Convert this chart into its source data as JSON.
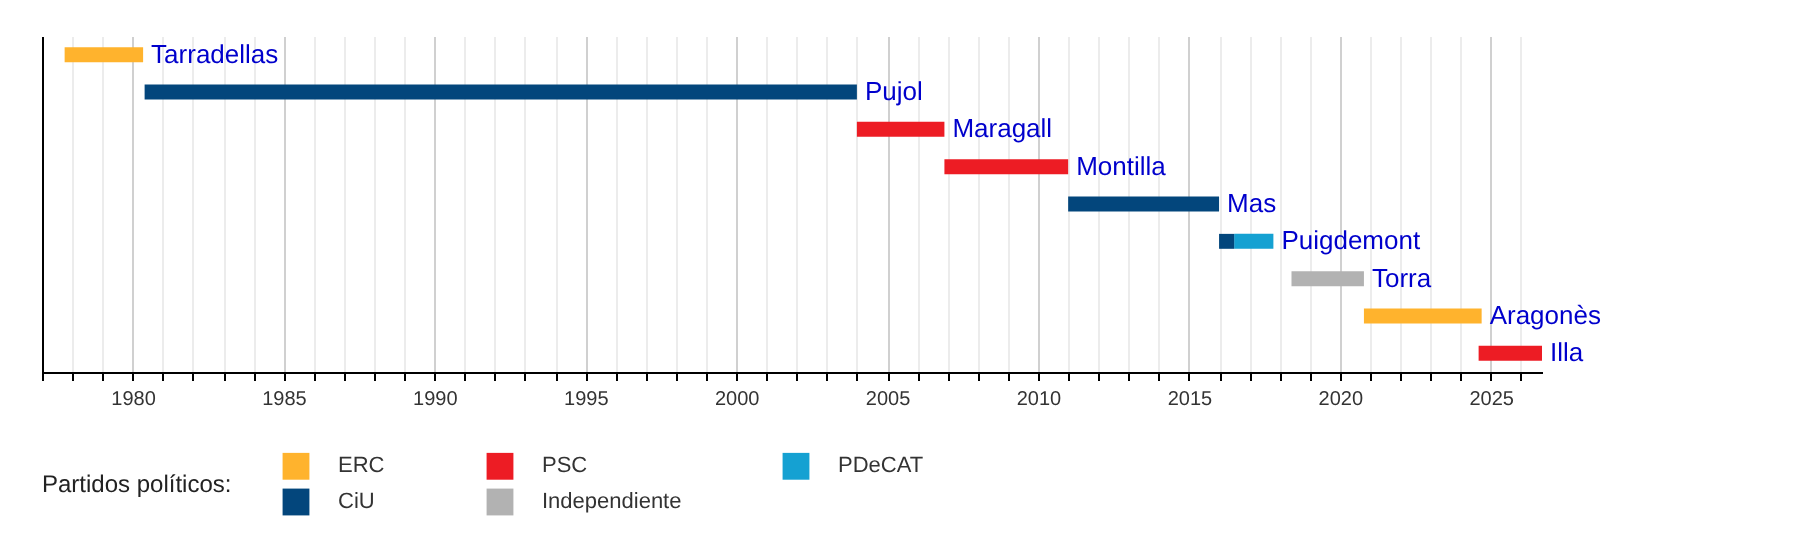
{
  "chart_data": {
    "type": "bar",
    "orientation": "horizontal",
    "categories": [
      "Tarradellas",
      "Pujol",
      "Maragall",
      "Montilla",
      "Mas",
      "Puigdemont",
      "Torra",
      "Aragonès",
      "Illa"
    ],
    "series": [
      {
        "name": "ERC",
        "color": "#ffb32d",
        "base": [
          1977.75,
          null,
          null,
          null,
          null,
          null,
          null,
          2020.8,
          null
        ],
        "values": [
          2.6,
          null,
          null,
          null,
          null,
          null,
          null,
          3.9,
          null
        ]
      },
      {
        "name": "PSC",
        "color": "#ed1c24",
        "base": [
          null,
          null,
          2004.0,
          2006.9,
          null,
          null,
          null,
          null,
          2024.6
        ],
        "values": [
          null,
          null,
          2.9,
          4.1,
          null,
          null,
          null,
          null,
          2.1
        ]
      },
      {
        "name": "PDeCAT",
        "color": "#15a1d2",
        "base": [
          null,
          null,
          null,
          null,
          null,
          2016.5,
          null,
          null,
          null
        ],
        "values": [
          null,
          null,
          null,
          null,
          null,
          1.3,
          null,
          null,
          null
        ]
      },
      {
        "name": "CiU",
        "color": "#03467c",
        "base": [
          null,
          1980.4,
          null,
          null,
          2011.0,
          2016.0,
          null,
          null,
          null
        ],
        "values": [
          null,
          23.6,
          null,
          null,
          5.0,
          0.5,
          null,
          null,
          null
        ]
      },
      {
        "name": "Independiente",
        "color": "#b2b2b2",
        "base": [
          null,
          null,
          null,
          null,
          null,
          null,
          2018.4,
          null,
          null
        ],
        "values": [
          null,
          null,
          null,
          null,
          null,
          null,
          2.4,
          null,
          null
        ]
      }
    ],
    "legend_title": "Partidos políticos:",
    "legend": "bottom",
    "grid": "x",
    "tick_labels": "x",
    "xlim": [
      1977,
      2026.7
    ],
    "xticks": [
      {
        "value": 1977,
        "label": null
      },
      {
        "value": 1978,
        "label": null
      },
      {
        "value": 1979,
        "label": null
      },
      1980,
      {
        "value": 1981,
        "label": null
      },
      {
        "value": 1982,
        "label": null
      },
      {
        "value": 1983,
        "label": null
      },
      {
        "value": 1984,
        "label": null
      },
      1985,
      {
        "value": 1986,
        "label": null
      },
      {
        "value": 1987,
        "label": null
      },
      {
        "value": 1988,
        "label": null
      },
      {
        "value": 1989,
        "label": null
      },
      1990,
      {
        "value": 1991,
        "label": null
      },
      {
        "value": 1992,
        "label": null
      },
      {
        "value": 1993,
        "label": null
      },
      {
        "value": 1994,
        "label": null
      },
      1995,
      {
        "value": 1996,
        "label": null
      },
      {
        "value": 1997,
        "label": null
      },
      {
        "value": 1998,
        "label": null
      },
      {
        "value": 1999,
        "label": null
      },
      2000,
      {
        "value": 2001,
        "label": null
      },
      {
        "value": 2002,
        "label": null
      },
      {
        "value": 2003,
        "label": null
      },
      {
        "value": 2004,
        "label": null
      },
      2005,
      {
        "value": 2006,
        "label": null
      },
      {
        "value": 2007,
        "label": null
      },
      {
        "value": 2008,
        "label": null
      },
      {
        "value": 2009,
        "label": null
      },
      2010,
      {
        "value": 2011,
        "label": null
      },
      {
        "value": 2012,
        "label": null
      },
      {
        "value": 2013,
        "label": null
      },
      {
        "value": 2014,
        "label": null
      },
      2015,
      {
        "value": 2016,
        "label": null
      },
      {
        "value": 2017,
        "label": null
      },
      {
        "value": 2018,
        "label": null
      },
      {
        "value": 2019,
        "label": null
      },
      2020,
      {
        "value": 2021,
        "label": null
      },
      {
        "value": 2022,
        "label": null
      },
      {
        "value": 2023,
        "label": null
      },
      {
        "value": 2024,
        "label": null
      },
      2025,
      {
        "value": 2026,
        "label": null
      }
    ]
  }
}
